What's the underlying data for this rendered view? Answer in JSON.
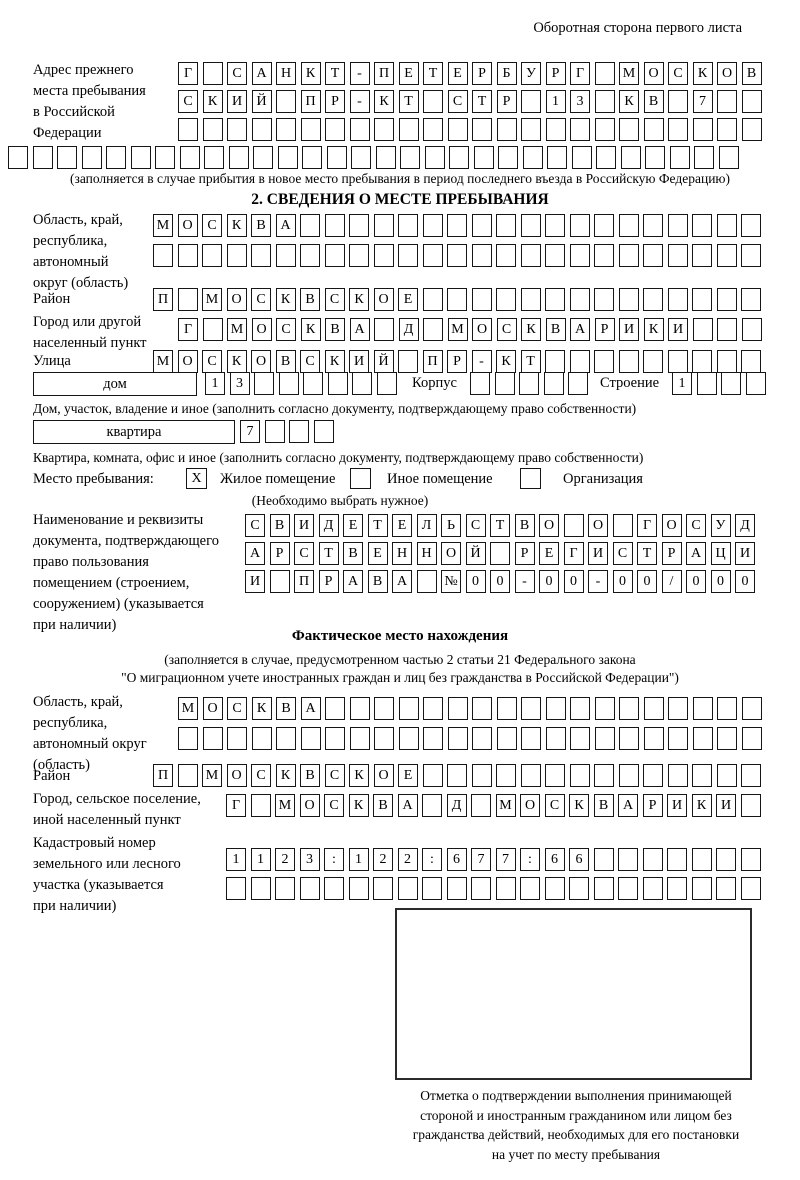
{
  "header": {
    "top_right": "Оборотная сторона первого листа"
  },
  "prev_address": {
    "label": "Адрес прежнего\nместа пребывания\nв Российской\nФедерации",
    "rows": [
      [
        "Г",
        "",
        "С",
        "А",
        "Н",
        "К",
        "Т",
        "-",
        "П",
        "Е",
        "Т",
        "Е",
        "Р",
        "Б",
        "У",
        "Р",
        "Г",
        "",
        "М",
        "О",
        "С",
        "К",
        "О",
        "В"
      ],
      [
        "С",
        "К",
        "И",
        "Й",
        "",
        "П",
        "Р",
        "-",
        "К",
        "Т",
        "",
        "С",
        "Т",
        "Р",
        "",
        "1",
        "3",
        "",
        "К",
        "В",
        "",
        "7",
        "",
        ""
      ],
      [
        "",
        "",
        "",
        "",
        "",
        "",
        "",
        "",
        "",
        "",
        "",
        "",
        "",
        "",
        "",
        "",
        "",
        "",
        "",
        "",
        "",
        "",
        "",
        ""
      ],
      [
        "",
        "",
        "",
        "",
        "",
        "",
        "",
        "",
        "",
        "",
        "",
        "",
        "",
        "",
        "",
        "",
        "",
        "",
        "",
        "",
        "",
        "",
        "",
        "",
        "",
        "",
        "",
        "",
        "",
        ""
      ]
    ],
    "note": "(заполняется в случае прибытия в новое место пребывания в период последнего въезда в Российскую Федерацию)"
  },
  "section2": {
    "title": "2. СВЕДЕНИЯ О МЕСТЕ ПРЕБЫВАНИЯ",
    "region": {
      "label": "Область, край,\nреспублика,\nавтономный\nокруг (область)",
      "rows": [
        [
          "М",
          "О",
          "С",
          "К",
          "В",
          "А",
          "",
          "",
          "",
          "",
          "",
          "",
          "",
          "",
          "",
          "",
          "",
          "",
          "",
          "",
          "",
          "",
          "",
          "",
          ""
        ],
        [
          "",
          "",
          "",
          "",
          "",
          "",
          "",
          "",
          "",
          "",
          "",
          "",
          "",
          "",
          "",
          "",
          "",
          "",
          "",
          "",
          "",
          "",
          "",
          "",
          ""
        ]
      ]
    },
    "district": {
      "label": "Район",
      "cells": [
        "П",
        "",
        "М",
        "О",
        "С",
        "К",
        "В",
        "С",
        "К",
        "О",
        "Е",
        "",
        "",
        "",
        "",
        "",
        "",
        "",
        "",
        "",
        "",
        "",
        "",
        "",
        ""
      ]
    },
    "city": {
      "label": "Город или другой\nнаселенный пункт",
      "cells": [
        "Г",
        "",
        "М",
        "О",
        "С",
        "К",
        "В",
        "А",
        "",
        "Д",
        "",
        "М",
        "О",
        "С",
        "К",
        "В",
        "А",
        "Р",
        "И",
        "К",
        "И",
        "",
        "",
        ""
      ]
    },
    "street": {
      "label": "Улица",
      "cells": [
        "М",
        "О",
        "С",
        "К",
        "О",
        "В",
        "С",
        "К",
        "И",
        "Й",
        "",
        "П",
        "Р",
        "-",
        "К",
        "Т",
        "",
        "",
        "",
        "",
        "",
        "",
        "",
        "",
        ""
      ]
    },
    "house": {
      "box_label": "дом",
      "cells": [
        "1",
        "3",
        "",
        "",
        "",
        "",
        "",
        ""
      ],
      "korpus_label": "Корпус",
      "korpus_cells": [
        "",
        "",
        "",
        "",
        ""
      ],
      "stroenie_label": "Строение",
      "stroenie_cells": [
        "1",
        "",
        "",
        ""
      ]
    },
    "house_caption": "Дом, участок, владение и иное (заполнить согласно документу, подтверждающему право собственности)",
    "apartment": {
      "box_label": "квартира",
      "cells": [
        "7",
        "",
        "",
        ""
      ]
    },
    "apartment_caption": "Квартира, комната, офис и иное (заполнить согласно документу, подтверждающему право собственности)",
    "stay_type": {
      "label": "Место пребывания:",
      "options": [
        {
          "label": "Жилое помещение",
          "mark": "X"
        },
        {
          "label": "Иное помещение",
          "mark": ""
        },
        {
          "label": "Организация",
          "mark": ""
        }
      ],
      "hint": "(Необходимо выбрать нужное)"
    },
    "document": {
      "label": "Наименование и реквизиты\nдокумента, подтверждающего\nправо пользования\nпомещением (строением,\nсооружением) (указывается\nпри наличии)",
      "rows": [
        [
          "С",
          "В",
          "И",
          "Д",
          "Е",
          "Т",
          "Е",
          "Л",
          "Ь",
          "С",
          "Т",
          "В",
          "О",
          "",
          "О",
          "",
          "Г",
          "О",
          "С",
          "У",
          "Д"
        ],
        [
          "А",
          "Р",
          "С",
          "Т",
          "В",
          "Е",
          "Н",
          "Н",
          "О",
          "Й",
          "",
          "Р",
          "Е",
          "Г",
          "И",
          "С",
          "Т",
          "Р",
          "А",
          "Ц",
          "И"
        ],
        [
          "И",
          "",
          "П",
          "Р",
          "А",
          "В",
          "А",
          "",
          "№",
          "0",
          "0",
          "-",
          "0",
          "0",
          "-",
          "0",
          "0",
          "/",
          "0",
          "0",
          "0"
        ]
      ]
    }
  },
  "actual_location": {
    "title": "Фактическое место нахождения",
    "subtitle1": "(заполняется в случае, предусмотренном частью 2 статьи 21 Федерального закона",
    "subtitle2": "\"О миграционном учете иностранных граждан и лиц без гражданства в Российской Федерации\")",
    "region": {
      "label": "Область, край,\nреспублика,\nавтономный округ\n(область)",
      "rows": [
        [
          "М",
          "О",
          "С",
          "К",
          "В",
          "А",
          "",
          "",
          "",
          "",
          "",
          "",
          "",
          "",
          "",
          "",
          "",
          "",
          "",
          "",
          "",
          "",
          "",
          ""
        ],
        [
          "",
          "",
          "",
          "",
          "",
          "",
          "",
          "",
          "",
          "",
          "",
          "",
          "",
          "",
          "",
          "",
          "",
          "",
          "",
          "",
          "",
          "",
          "",
          ""
        ]
      ]
    },
    "district": {
      "label": "Район",
      "cells": [
        "П",
        "",
        "М",
        "О",
        "С",
        "К",
        "В",
        "С",
        "К",
        "О",
        "Е",
        "",
        "",
        "",
        "",
        "",
        "",
        "",
        "",
        "",
        "",
        "",
        "",
        "",
        ""
      ]
    },
    "city": {
      "label": "Город, сельское поселение,\nиной населенный пункт",
      "cells": [
        "Г",
        "",
        "М",
        "О",
        "С",
        "К",
        "В",
        "А",
        "",
        "Д",
        "",
        "М",
        "О",
        "С",
        "К",
        "В",
        "А",
        "Р",
        "И",
        "К",
        "И",
        ""
      ]
    },
    "cadastral": {
      "label": "Кадастровый номер\nземельного или лесного\nучастка (указывается\nпри наличии)",
      "rows": [
        [
          "1",
          "1",
          "2",
          "3",
          ":",
          "1",
          "2",
          "2",
          ":",
          "6",
          "7",
          "7",
          ":",
          "6",
          "6",
          "",
          "",
          "",
          "",
          "",
          "",
          ""
        ],
        [
          "",
          "",
          "",
          "",
          "",
          "",
          "",
          "",
          "",
          "",
          "",
          "",
          "",
          "",
          "",
          "",
          "",
          "",
          "",
          "",
          "",
          ""
        ]
      ]
    },
    "stamp_caption": "Отметка о подтверждении выполнения принимающей\nстороной и иностранным гражданином или лицом без\nгражданства действий, необходимых для его постановки\nна учет по месту пребывания"
  }
}
